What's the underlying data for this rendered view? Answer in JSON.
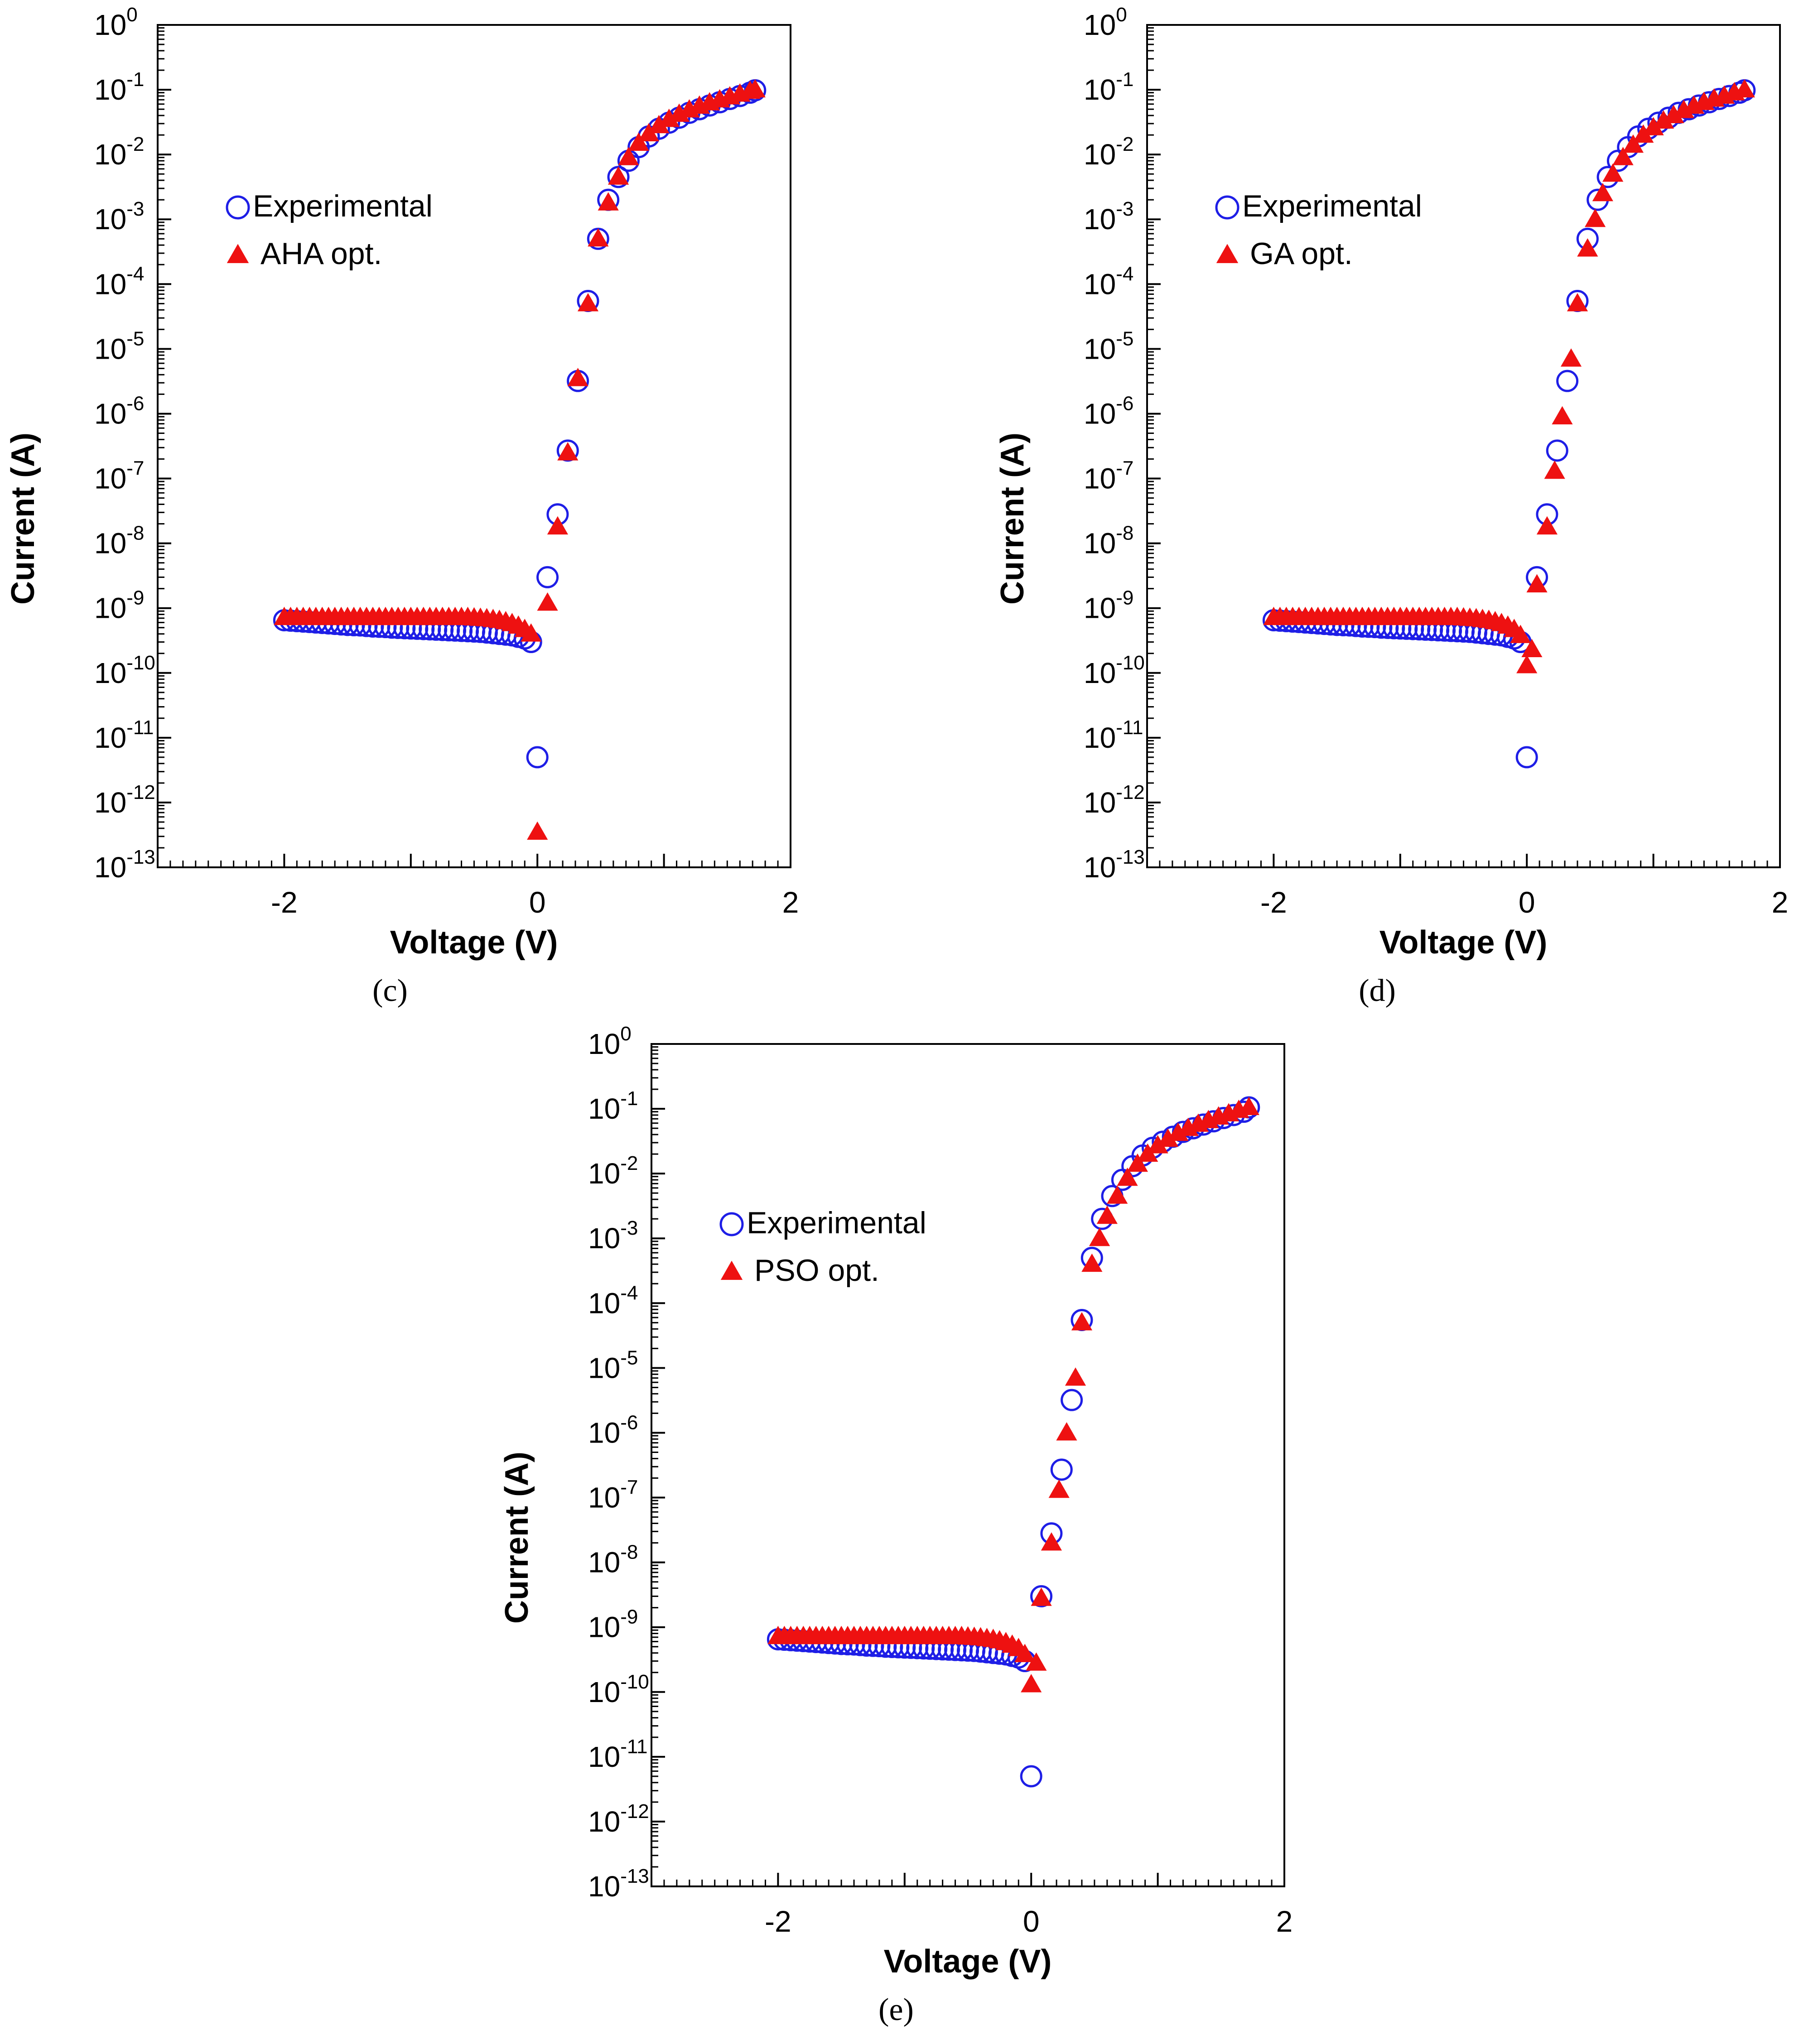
{
  "x_axis": {
    "label": "Voltage (V)",
    "min": -3,
    "max": 2,
    "ticks": [
      {
        "value": -2,
        "label": "-2"
      },
      {
        "value": 0,
        "label": "0"
      },
      {
        "value": 2,
        "label": "2"
      }
    ]
  },
  "y_axis": {
    "label": "Current (A)",
    "scale": "log",
    "min_exp": -13,
    "max_exp": 0,
    "base_label": "10",
    "exponent_labels": [
      "0",
      "-1",
      "-2",
      "-3",
      "-4",
      "-5",
      "-6",
      "-7",
      "-8",
      "-9",
      "-10",
      "-11",
      "-12",
      "-13"
    ]
  },
  "colors": {
    "experimental": "#1e1ee6",
    "optimized": "#ee1111",
    "axis": "#000000"
  },
  "chart_data": [
    {
      "id": "c",
      "type": "scatter",
      "panel_label": "(c)",
      "legend": {
        "experimental": "Experimental",
        "optimized": "AHA opt."
      },
      "series": [
        {
          "name": "Experimental",
          "marker": "open-circle",
          "x": [
            -2.0,
            -1.95,
            -1.9,
            -1.85,
            -1.8,
            -1.75,
            -1.7,
            -1.65,
            -1.6,
            -1.55,
            -1.5,
            -1.45,
            -1.4,
            -1.35,
            -1.3,
            -1.25,
            -1.2,
            -1.15,
            -1.1,
            -1.05,
            -1.0,
            -0.95,
            -0.9,
            -0.85,
            -0.8,
            -0.75,
            -0.7,
            -0.65,
            -0.6,
            -0.55,
            -0.5,
            -0.45,
            -0.4,
            -0.35,
            -0.3,
            -0.25,
            -0.2,
            -0.15,
            -0.1,
            -0.05,
            0.0,
            0.08,
            0.16,
            0.24,
            0.32,
            0.4,
            0.48,
            0.56,
            0.64,
            0.72,
            0.8,
            0.88,
            0.96,
            1.04,
            1.12,
            1.2,
            1.28,
            1.36,
            1.44,
            1.52,
            1.6,
            1.68,
            1.72
          ],
          "y": [
            6.5e-10,
            6.4e-10,
            6.3e-10,
            6.2e-10,
            6.1e-10,
            6e-10,
            5.9e-10,
            5.8e-10,
            5.7e-10,
            5.6e-10,
            5.5e-10,
            5.45e-10,
            5.4e-10,
            5.3e-10,
            5.2e-10,
            5.15e-10,
            5.1e-10,
            5e-10,
            4.95e-10,
            4.9e-10,
            4.85e-10,
            4.8e-10,
            4.75e-10,
            4.7e-10,
            4.65e-10,
            4.6e-10,
            4.55e-10,
            4.5e-10,
            4.45e-10,
            4.4e-10,
            4.35e-10,
            4.3e-10,
            4.2e-10,
            4.1e-10,
            4e-10,
            3.9e-10,
            3.8e-10,
            3.6e-10,
            3.4e-10,
            3e-10,
            5e-12,
            3e-09,
            2.8e-08,
            2.7e-07,
            3.2e-06,
            5.5e-05,
            0.0005,
            0.002,
            0.0045,
            0.008,
            0.013,
            0.019,
            0.025,
            0.031,
            0.037,
            0.044,
            0.05,
            0.057,
            0.064,
            0.072,
            0.08,
            0.09,
            0.098
          ]
        },
        {
          "name": "AHA opt.",
          "marker": "filled-triangle",
          "x": [
            -2.0,
            -1.95,
            -1.9,
            -1.85,
            -1.8,
            -1.75,
            -1.7,
            -1.65,
            -1.6,
            -1.55,
            -1.5,
            -1.45,
            -1.4,
            -1.35,
            -1.3,
            -1.25,
            -1.2,
            -1.15,
            -1.1,
            -1.05,
            -1.0,
            -0.95,
            -0.9,
            -0.85,
            -0.8,
            -0.75,
            -0.7,
            -0.65,
            -0.6,
            -0.55,
            -0.5,
            -0.45,
            -0.4,
            -0.35,
            -0.3,
            -0.25,
            -0.2,
            -0.15,
            -0.1,
            -0.05,
            0.0,
            0.08,
            0.16,
            0.24,
            0.32,
            0.4,
            0.48,
            0.56,
            0.64,
            0.72,
            0.8,
            0.88,
            0.96,
            1.04,
            1.12,
            1.2,
            1.28,
            1.36,
            1.44,
            1.52,
            1.6,
            1.68,
            1.72
          ],
          "y": [
            7.2e-10,
            7.2e-10,
            7.2e-10,
            7.2e-10,
            7.2e-10,
            7.2e-10,
            7.2e-10,
            7.2e-10,
            7.2e-10,
            7.2e-10,
            7.2e-10,
            7.2e-10,
            7.2e-10,
            7.2e-10,
            7.2e-10,
            7.2e-10,
            7.2e-10,
            7.2e-10,
            7.2e-10,
            7.2e-10,
            7.2e-10,
            7.2e-10,
            7.2e-10,
            7.2e-10,
            7.2e-10,
            7.2e-10,
            7.2e-10,
            7.2e-10,
            7.2e-10,
            7.2e-10,
            7.1e-10,
            7e-10,
            6.9e-10,
            6.7e-10,
            6.5e-10,
            6.2e-10,
            5.8e-10,
            5.3e-10,
            4.7e-10,
            4e-10,
            3.5e-13,
            1.2e-09,
            1.8e-08,
            2.5e-07,
            3.5e-06,
            5e-05,
            0.0005,
            0.0018,
            0.0045,
            0.009,
            0.015,
            0.021,
            0.028,
            0.035,
            0.042,
            0.049,
            0.056,
            0.063,
            0.07,
            0.078,
            0.086,
            0.095,
            0.1
          ]
        }
      ]
    },
    {
      "id": "d",
      "type": "scatter",
      "panel_label": "(d)",
      "legend": {
        "experimental": "Experimental",
        "optimized": "GA opt."
      },
      "series": [
        {
          "name": "Experimental",
          "marker": "open-circle",
          "x": [
            -2.0,
            -1.95,
            -1.9,
            -1.85,
            -1.8,
            -1.75,
            -1.7,
            -1.65,
            -1.6,
            -1.55,
            -1.5,
            -1.45,
            -1.4,
            -1.35,
            -1.3,
            -1.25,
            -1.2,
            -1.15,
            -1.1,
            -1.05,
            -1.0,
            -0.95,
            -0.9,
            -0.85,
            -0.8,
            -0.75,
            -0.7,
            -0.65,
            -0.6,
            -0.55,
            -0.5,
            -0.45,
            -0.4,
            -0.35,
            -0.3,
            -0.25,
            -0.2,
            -0.15,
            -0.1,
            -0.05,
            0.0,
            0.08,
            0.16,
            0.24,
            0.32,
            0.4,
            0.48,
            0.56,
            0.64,
            0.72,
            0.8,
            0.88,
            0.96,
            1.04,
            1.12,
            1.2,
            1.28,
            1.36,
            1.44,
            1.52,
            1.6,
            1.68,
            1.72
          ],
          "y": [
            6.5e-10,
            6.4e-10,
            6.3e-10,
            6.2e-10,
            6.1e-10,
            6e-10,
            5.9e-10,
            5.8e-10,
            5.7e-10,
            5.6e-10,
            5.5e-10,
            5.45e-10,
            5.4e-10,
            5.3e-10,
            5.2e-10,
            5.15e-10,
            5.1e-10,
            5e-10,
            4.95e-10,
            4.9e-10,
            4.85e-10,
            4.8e-10,
            4.75e-10,
            4.7e-10,
            4.65e-10,
            4.6e-10,
            4.55e-10,
            4.5e-10,
            4.45e-10,
            4.4e-10,
            4.35e-10,
            4.3e-10,
            4.2e-10,
            4.1e-10,
            4e-10,
            3.9e-10,
            3.8e-10,
            3.6e-10,
            3.4e-10,
            3e-10,
            5e-12,
            3e-09,
            2.8e-08,
            2.7e-07,
            3.2e-06,
            5.5e-05,
            0.0005,
            0.002,
            0.0045,
            0.008,
            0.013,
            0.019,
            0.025,
            0.031,
            0.037,
            0.044,
            0.05,
            0.057,
            0.064,
            0.072,
            0.08,
            0.09,
            0.098
          ]
        },
        {
          "name": "GA opt.",
          "marker": "filled-triangle",
          "x": [
            -2.0,
            -1.95,
            -1.9,
            -1.85,
            -1.8,
            -1.75,
            -1.7,
            -1.65,
            -1.6,
            -1.55,
            -1.5,
            -1.45,
            -1.4,
            -1.35,
            -1.3,
            -1.25,
            -1.2,
            -1.15,
            -1.1,
            -1.05,
            -1.0,
            -0.95,
            -0.9,
            -0.85,
            -0.8,
            -0.75,
            -0.7,
            -0.65,
            -0.6,
            -0.55,
            -0.5,
            -0.45,
            -0.4,
            -0.35,
            -0.3,
            -0.25,
            -0.2,
            -0.15,
            -0.1,
            -0.05,
            0.0,
            0.04,
            0.08,
            0.16,
            0.22,
            0.28,
            0.35,
            0.4,
            0.48,
            0.54,
            0.6,
            0.68,
            0.76,
            0.84,
            0.92,
            1.0,
            1.08,
            1.16,
            1.24,
            1.32,
            1.4,
            1.48,
            1.56,
            1.64,
            1.72
          ],
          "y": [
            7.2e-10,
            7.2e-10,
            7.2e-10,
            7.2e-10,
            7.2e-10,
            7.2e-10,
            7.2e-10,
            7.2e-10,
            7.2e-10,
            7.2e-10,
            7.2e-10,
            7.2e-10,
            7.2e-10,
            7.2e-10,
            7.2e-10,
            7.2e-10,
            7.2e-10,
            7.2e-10,
            7.2e-10,
            7.2e-10,
            7.2e-10,
            7.2e-10,
            7.2e-10,
            7.2e-10,
            7.2e-10,
            7.2e-10,
            7.2e-10,
            7.2e-10,
            7.2e-10,
            7.2e-10,
            7.1e-10,
            7e-10,
            6.9e-10,
            6.7e-10,
            6.5e-10,
            6.2e-10,
            5.8e-10,
            5.3e-10,
            4.7e-10,
            3.8e-10,
            1.3e-10,
            2.3e-10,
            2.3e-09,
            1.8e-08,
            1.3e-07,
            9e-07,
            7e-06,
            5e-05,
            0.00035,
            0.001,
            0.0025,
            0.005,
            0.009,
            0.014,
            0.02,
            0.026,
            0.033,
            0.04,
            0.048,
            0.056,
            0.064,
            0.072,
            0.08,
            0.09,
            0.1
          ]
        }
      ]
    },
    {
      "id": "e",
      "type": "scatter",
      "panel_label": "(e)",
      "legend": {
        "experimental": "Experimental",
        "optimized": "PSO opt."
      },
      "series": [
        {
          "name": "Experimental",
          "marker": "open-circle",
          "x": [
            -2.0,
            -1.95,
            -1.9,
            -1.85,
            -1.8,
            -1.75,
            -1.7,
            -1.65,
            -1.6,
            -1.55,
            -1.5,
            -1.45,
            -1.4,
            -1.35,
            -1.3,
            -1.25,
            -1.2,
            -1.15,
            -1.1,
            -1.05,
            -1.0,
            -0.95,
            -0.9,
            -0.85,
            -0.8,
            -0.75,
            -0.7,
            -0.65,
            -0.6,
            -0.55,
            -0.5,
            -0.45,
            -0.4,
            -0.35,
            -0.3,
            -0.25,
            -0.2,
            -0.15,
            -0.1,
            -0.05,
            0.0,
            0.08,
            0.16,
            0.24,
            0.32,
            0.4,
            0.48,
            0.56,
            0.64,
            0.72,
            0.8,
            0.88,
            0.96,
            1.04,
            1.12,
            1.2,
            1.28,
            1.36,
            1.44,
            1.52,
            1.6,
            1.68,
            1.72
          ],
          "y": [
            6.5e-10,
            6.4e-10,
            6.3e-10,
            6.2e-10,
            6.1e-10,
            6e-10,
            5.9e-10,
            5.8e-10,
            5.7e-10,
            5.6e-10,
            5.5e-10,
            5.45e-10,
            5.4e-10,
            5.3e-10,
            5.2e-10,
            5.15e-10,
            5.1e-10,
            5e-10,
            4.95e-10,
            4.9e-10,
            4.85e-10,
            4.8e-10,
            4.75e-10,
            4.7e-10,
            4.65e-10,
            4.6e-10,
            4.55e-10,
            4.5e-10,
            4.45e-10,
            4.4e-10,
            4.35e-10,
            4.3e-10,
            4.2e-10,
            4.1e-10,
            4e-10,
            3.9e-10,
            3.8e-10,
            3.6e-10,
            3.4e-10,
            3e-10,
            5e-12,
            3e-09,
            2.8e-08,
            2.7e-07,
            3.2e-06,
            5.5e-05,
            0.0005,
            0.002,
            0.0045,
            0.008,
            0.013,
            0.019,
            0.025,
            0.031,
            0.037,
            0.044,
            0.05,
            0.057,
            0.064,
            0.072,
            0.08,
            0.09,
            0.105
          ]
        },
        {
          "name": "PSO opt.",
          "marker": "filled-triangle",
          "x": [
            -2.0,
            -1.95,
            -1.9,
            -1.85,
            -1.8,
            -1.75,
            -1.7,
            -1.65,
            -1.6,
            -1.55,
            -1.5,
            -1.45,
            -1.4,
            -1.35,
            -1.3,
            -1.25,
            -1.2,
            -1.15,
            -1.1,
            -1.05,
            -1.0,
            -0.95,
            -0.9,
            -0.85,
            -0.8,
            -0.75,
            -0.7,
            -0.65,
            -0.6,
            -0.55,
            -0.5,
            -0.45,
            -0.4,
            -0.35,
            -0.3,
            -0.25,
            -0.2,
            -0.15,
            -0.1,
            -0.05,
            0.0,
            0.04,
            0.08,
            0.16,
            0.22,
            0.28,
            0.35,
            0.4,
            0.48,
            0.54,
            0.6,
            0.68,
            0.76,
            0.84,
            0.92,
            1.0,
            1.08,
            1.16,
            1.24,
            1.32,
            1.4,
            1.48,
            1.56,
            1.64,
            1.72
          ],
          "y": [
            7.2e-10,
            7.2e-10,
            7.2e-10,
            7.2e-10,
            7.2e-10,
            7.2e-10,
            7.2e-10,
            7.2e-10,
            7.2e-10,
            7.2e-10,
            7.2e-10,
            7.2e-10,
            7.2e-10,
            7.2e-10,
            7.2e-10,
            7.2e-10,
            7.2e-10,
            7.2e-10,
            7.2e-10,
            7.2e-10,
            7.2e-10,
            7.2e-10,
            7.2e-10,
            7.2e-10,
            7.2e-10,
            7.2e-10,
            7.2e-10,
            7.2e-10,
            7.2e-10,
            7.2e-10,
            7.1e-10,
            7e-10,
            6.9e-10,
            6.7e-10,
            6.5e-10,
            6.2e-10,
            5.8e-10,
            5.3e-10,
            4.7e-10,
            3.8e-10,
            1.3e-10,
            2.8e-10,
            2.8e-09,
            2e-08,
            1.3e-07,
            1e-06,
            7e-06,
            5e-05,
            0.0004,
            0.001,
            0.0022,
            0.0045,
            0.0085,
            0.014,
            0.02,
            0.027,
            0.034,
            0.042,
            0.05,
            0.058,
            0.066,
            0.075,
            0.084,
            0.095,
            0.105
          ]
        }
      ]
    }
  ]
}
